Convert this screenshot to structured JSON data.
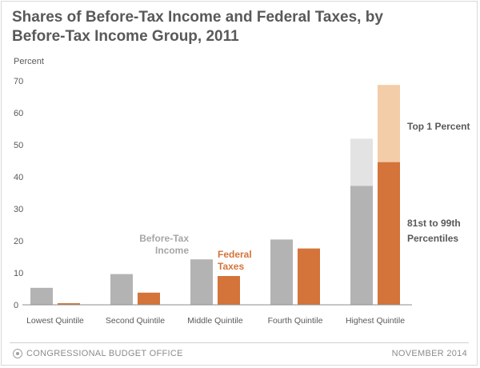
{
  "chart_data": {
    "type": "bar",
    "title_line1": "Shares of Before-Tax Income and Federal Taxes, by",
    "title_line2": "Before-Tax Income Group, 2011",
    "ylabel": "Percent",
    "xlabel": "",
    "ylim": [
      0,
      70
    ],
    "yticks": [
      0,
      10,
      20,
      30,
      40,
      50,
      60,
      70
    ],
    "categories": [
      "Lowest Quintile",
      "Second Quintile",
      "Middle Quintile",
      "Fourth Quintile",
      "Highest Quintile"
    ],
    "series": [
      {
        "name": "Before-Tax Income",
        "values": [
          5.3,
          9.6,
          14.2,
          20.4,
          51.9
        ],
        "color": "#b3b3b3"
      },
      {
        "name": "Federal Taxes",
        "values": [
          0.5,
          3.8,
          9.0,
          17.6,
          68.7
        ],
        "color": "#d4733a"
      }
    ],
    "highest_split": {
      "before_tax_81_99": 37.2,
      "before_tax_top1": 14.7,
      "taxes_81_99": 44.6,
      "taxes_top1": 24.1,
      "before_tax_top1_color": "#e3e3e3",
      "taxes_top1_color": "#f3cca8"
    },
    "annotations": {
      "before_tax_line1": "Before-Tax",
      "before_tax_line2": "Income",
      "taxes_line1": "Federal",
      "taxes_line2": "Taxes",
      "top1": "Top 1 Percent",
      "pct_line1": "81st to 99th",
      "pct_line2": "Percentiles"
    }
  },
  "footer": {
    "source": "CONGRESSIONAL BUDGET OFFICE",
    "date": "NOVEMBER 2014"
  },
  "colors": {
    "axis_text": "#595959",
    "gray_label": "#a6a6a6",
    "orange_label": "#d4733a"
  }
}
